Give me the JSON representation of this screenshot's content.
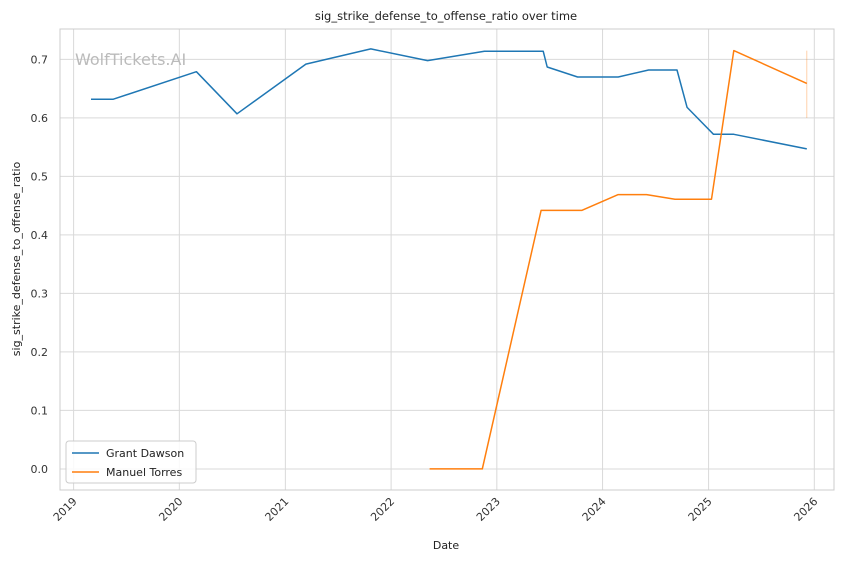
{
  "chart_data": {
    "type": "line",
    "title": "sig_strike_defense_to_offense_ratio over time",
    "xlabel": "Date",
    "ylabel": "sig_strike_defense_to_offense_ratio",
    "watermark": "WolfTickets.AI",
    "x_ticks": [
      "2019",
      "2020",
      "2021",
      "2022",
      "2023",
      "2024",
      "2025",
      "2026"
    ],
    "y_ticks": [
      "0.0",
      "0.1",
      "0.2",
      "0.3",
      "0.4",
      "0.5",
      "0.6",
      "0.7"
    ],
    "xlim": [
      "2018-11-15",
      "2026-03-10"
    ],
    "ylim": [
      -0.036,
      0.752
    ],
    "grid": true,
    "legend_position": "lower-left",
    "series": [
      {
        "name": "Grant Dawson",
        "color": "#1f77b4",
        "points": [
          [
            "2019-03-02",
            0.632
          ],
          [
            "2019-05-18",
            0.632
          ],
          [
            "2020-02-29",
            0.679
          ],
          [
            "2020-07-18",
            0.607
          ],
          [
            "2021-03-13",
            0.692
          ],
          [
            "2021-10-23",
            0.718
          ],
          [
            "2022-05-07",
            0.698
          ],
          [
            "2022-11-19",
            0.714
          ],
          [
            "2023-06-10",
            0.714
          ],
          [
            "2023-06-24",
            0.687
          ],
          [
            "2023-10-07",
            0.67
          ],
          [
            "2024-02-24",
            0.67
          ],
          [
            "2024-06-08",
            0.682
          ],
          [
            "2024-09-14",
            0.682
          ],
          [
            "2024-10-19",
            0.618
          ],
          [
            "2025-01-18",
            0.572
          ],
          [
            "2025-03-29",
            0.572
          ],
          [
            "2025-12-06",
            0.547
          ]
        ]
      },
      {
        "name": "Manuel Torres",
        "color": "#ff7f0e",
        "points": [
          [
            "2022-05-14",
            0.0
          ],
          [
            "2022-11-12",
            0.0
          ],
          [
            "2023-06-03",
            0.442
          ],
          [
            "2023-10-21",
            0.442
          ],
          [
            "2024-02-24",
            0.469
          ],
          [
            "2024-06-01",
            0.469
          ],
          [
            "2024-09-07",
            0.461
          ],
          [
            "2025-01-11",
            0.461
          ],
          [
            "2025-03-29",
            0.715
          ],
          [
            "2025-12-06",
            0.659
          ]
        ]
      }
    ]
  }
}
